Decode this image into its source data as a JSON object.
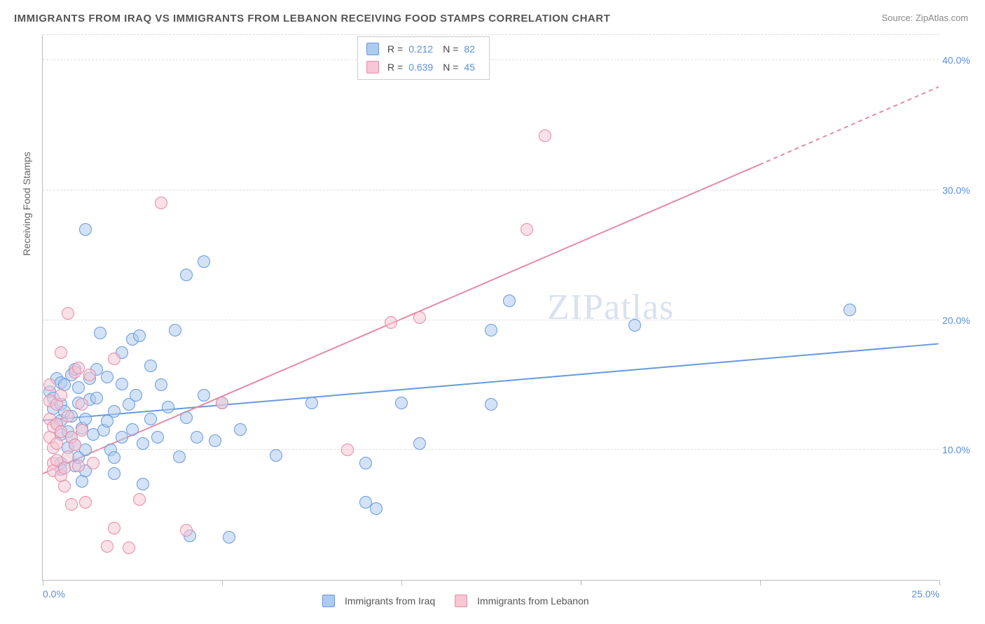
{
  "title": "IMMIGRANTS FROM IRAQ VS IMMIGRANTS FROM LEBANON RECEIVING FOOD STAMPS CORRELATION CHART",
  "source_label": "Source: ZipAtlas.com",
  "y_axis_label": "Receiving Food Stamps",
  "watermark": "ZIPatlas",
  "chart": {
    "type": "scatter",
    "background_color": "#ffffff",
    "grid_color": "#dddddd",
    "axis_color": "#bbbbbb",
    "tick_label_color": "#5b8fd8",
    "tick_label_fontsize": 14,
    "title_fontsize": 15,
    "title_color": "#555555",
    "xlim": [
      0,
      25
    ],
    "ylim": [
      0,
      42
    ],
    "x_ticks": [
      0,
      5,
      10,
      15,
      20,
      25
    ],
    "x_tick_labels": [
      "0.0%",
      "",
      "",
      "",
      "",
      "25.0%"
    ],
    "y_ticks": [
      10,
      20,
      30,
      40
    ],
    "y_tick_labels": [
      "10.0%",
      "20.0%",
      "30.0%",
      "40.0%"
    ],
    "marker_radius": 9,
    "marker_border_width": 1,
    "line_width": 2
  },
  "series": [
    {
      "name": "Immigrants from Iraq",
      "colorFill": "#aecaee",
      "colorStroke": "#6699dd",
      "colorFillAlpha": "rgba(174,202,238,0.55)",
      "r": "0.212",
      "n": "82",
      "trend": {
        "x1": 0,
        "y1": 12.3,
        "x2": 25,
        "y2": 18.2,
        "dashed": false
      },
      "points": [
        [
          0.2,
          14.5
        ],
        [
          0.3,
          14.0
        ],
        [
          0.3,
          13.2
        ],
        [
          0.4,
          15.5
        ],
        [
          0.4,
          12.0
        ],
        [
          0.5,
          15.2
        ],
        [
          0.5,
          13.5
        ],
        [
          0.5,
          12.3
        ],
        [
          0.5,
          11.2
        ],
        [
          0.5,
          9.0
        ],
        [
          0.5,
          8.5
        ],
        [
          0.6,
          15.0
        ],
        [
          0.6,
          13.0
        ],
        [
          0.7,
          11.4
        ],
        [
          0.7,
          10.2
        ],
        [
          0.8,
          12.6
        ],
        [
          0.8,
          11.0
        ],
        [
          0.8,
          15.8
        ],
        [
          0.9,
          8.8
        ],
        [
          0.9,
          10.4
        ],
        [
          0.9,
          16.2
        ],
        [
          1.0,
          13.6
        ],
        [
          1.0,
          9.4
        ],
        [
          1.0,
          14.8
        ],
        [
          1.1,
          11.7
        ],
        [
          1.1,
          7.6
        ],
        [
          1.2,
          12.4
        ],
        [
          1.2,
          10.0
        ],
        [
          1.2,
          8.4
        ],
        [
          1.2,
          27.0
        ],
        [
          1.3,
          13.9
        ],
        [
          1.3,
          15.5
        ],
        [
          1.4,
          11.2
        ],
        [
          1.5,
          16.2
        ],
        [
          1.5,
          14.0
        ],
        [
          1.6,
          19.0
        ],
        [
          1.7,
          11.5
        ],
        [
          1.8,
          12.2
        ],
        [
          1.8,
          15.6
        ],
        [
          1.9,
          10.0
        ],
        [
          2.0,
          13.0
        ],
        [
          2.0,
          9.4
        ],
        [
          2.0,
          8.2
        ],
        [
          2.2,
          17.5
        ],
        [
          2.2,
          11.0
        ],
        [
          2.2,
          15.1
        ],
        [
          2.4,
          13.5
        ],
        [
          2.5,
          18.5
        ],
        [
          2.5,
          11.6
        ],
        [
          2.6,
          14.2
        ],
        [
          2.7,
          18.8
        ],
        [
          2.8,
          7.4
        ],
        [
          2.8,
          10.5
        ],
        [
          3.0,
          12.4
        ],
        [
          3.0,
          16.5
        ],
        [
          3.2,
          11.0
        ],
        [
          3.3,
          15.0
        ],
        [
          3.5,
          13.3
        ],
        [
          3.7,
          19.2
        ],
        [
          3.8,
          9.5
        ],
        [
          4.0,
          23.5
        ],
        [
          4.0,
          12.5
        ],
        [
          4.1,
          3.4
        ],
        [
          4.3,
          11.0
        ],
        [
          4.5,
          14.2
        ],
        [
          4.5,
          24.5
        ],
        [
          4.8,
          10.7
        ],
        [
          5.0,
          13.6
        ],
        [
          5.2,
          3.3
        ],
        [
          5.5,
          11.6
        ],
        [
          6.5,
          9.6
        ],
        [
          7.5,
          13.6
        ],
        [
          9.0,
          6.0
        ],
        [
          9.0,
          9.0
        ],
        [
          9.3,
          5.5
        ],
        [
          10.0,
          13.6
        ],
        [
          10.5,
          10.5
        ],
        [
          12.5,
          13.5
        ],
        [
          12.5,
          19.2
        ],
        [
          13.0,
          21.5
        ],
        [
          16.5,
          19.6
        ],
        [
          22.5,
          20.8
        ]
      ]
    },
    {
      "name": "Immigrants from Lebanon",
      "colorFill": "#f6c7d4",
      "colorStroke": "#e48ba6",
      "colorFillAlpha": "rgba(246,199,212,0.55)",
      "r": "0.639",
      "n": "45",
      "trend": {
        "x1": 0,
        "y1": 8.2,
        "x2": 20,
        "y2": 32.0,
        "dashed": false
      },
      "trend_ext": {
        "x1": 20,
        "y1": 32.0,
        "x2": 25,
        "y2": 38.0,
        "dashed": true
      },
      "points": [
        [
          0.2,
          13.8
        ],
        [
          0.2,
          12.4
        ],
        [
          0.2,
          11.0
        ],
        [
          0.2,
          15.0
        ],
        [
          0.3,
          10.2
        ],
        [
          0.3,
          9.0
        ],
        [
          0.3,
          11.8
        ],
        [
          0.3,
          8.4
        ],
        [
          0.4,
          13.5
        ],
        [
          0.4,
          12.0
        ],
        [
          0.4,
          9.2
        ],
        [
          0.4,
          10.5
        ],
        [
          0.5,
          14.2
        ],
        [
          0.5,
          8.0
        ],
        [
          0.5,
          11.4
        ],
        [
          0.5,
          17.5
        ],
        [
          0.6,
          8.6
        ],
        [
          0.6,
          7.2
        ],
        [
          0.7,
          12.6
        ],
        [
          0.7,
          9.5
        ],
        [
          0.7,
          20.5
        ],
        [
          0.8,
          5.8
        ],
        [
          0.8,
          11.0
        ],
        [
          0.9,
          10.4
        ],
        [
          0.9,
          16.0
        ],
        [
          1.0,
          16.3
        ],
        [
          1.0,
          8.8
        ],
        [
          1.1,
          13.5
        ],
        [
          1.1,
          11.5
        ],
        [
          1.2,
          6.0
        ],
        [
          1.3,
          15.8
        ],
        [
          1.4,
          9.0
        ],
        [
          1.8,
          2.6
        ],
        [
          2.0,
          17.0
        ],
        [
          2.0,
          4.0
        ],
        [
          2.4,
          2.5
        ],
        [
          2.7,
          6.2
        ],
        [
          3.3,
          29.0
        ],
        [
          4.0,
          3.8
        ],
        [
          5.0,
          13.6
        ],
        [
          8.5,
          10.0
        ],
        [
          9.7,
          19.8
        ],
        [
          10.5,
          20.2
        ],
        [
          13.5,
          27.0
        ],
        [
          14.0,
          34.2
        ]
      ]
    }
  ],
  "legend_top": {
    "r_label": "R =",
    "n_label": "N ="
  },
  "legend_bottom": {
    "series1": "Immigrants from Iraq",
    "series2": "Immigrants from Lebanon"
  }
}
